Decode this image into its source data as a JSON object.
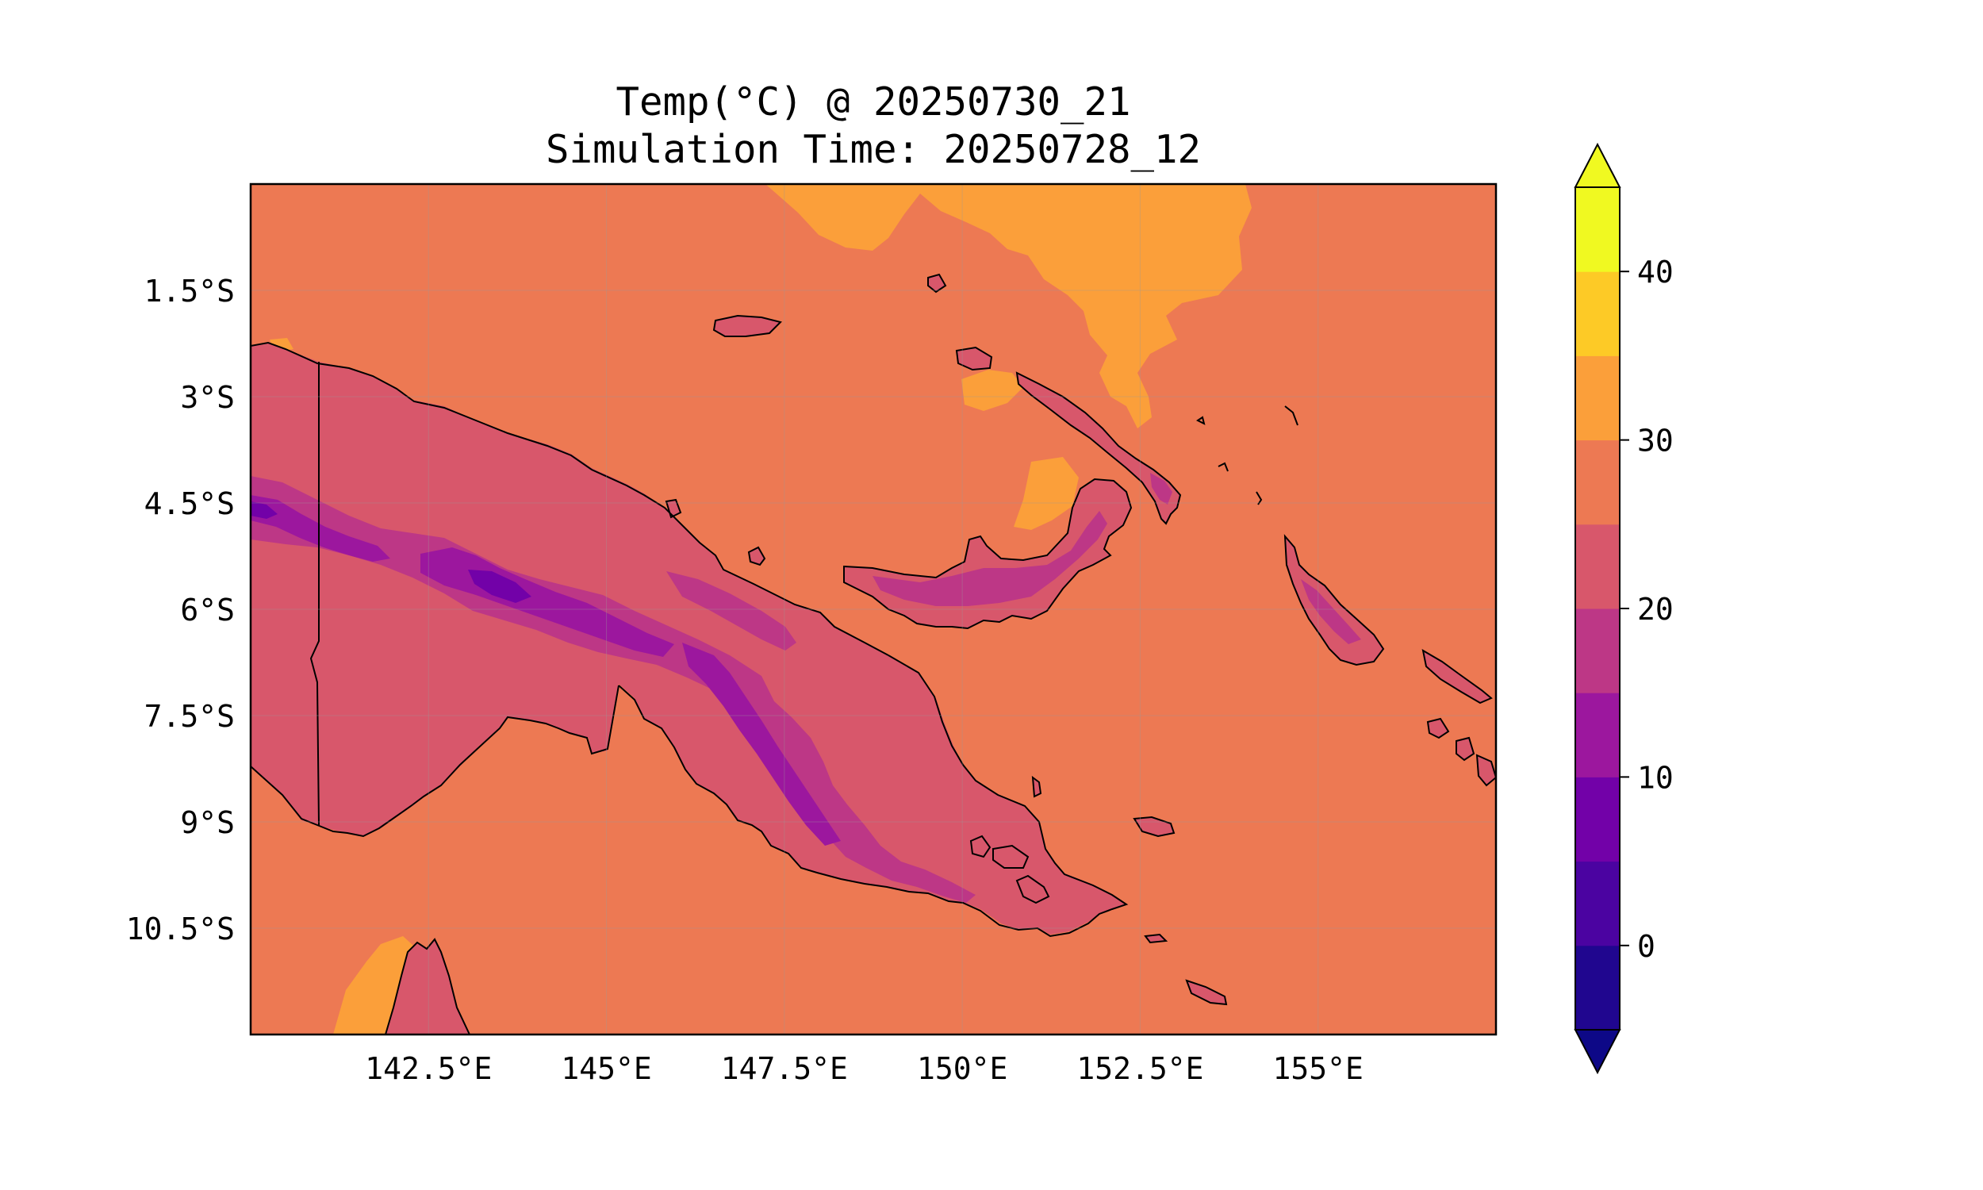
{
  "figure": {
    "title": "Temp(°C) @ 20250730_21",
    "subtitle": "Simulation Time: 20250728_12"
  },
  "map": {
    "latitude_ticks": [
      "1.5°S",
      "3°S",
      "4.5°S",
      "6°S",
      "7.5°S",
      "9°S",
      "10.5°S"
    ],
    "longitude_ticks": [
      "142.5°E",
      "145°E",
      "147.5°E",
      "150°E",
      "152.5°E",
      "155°E"
    ],
    "extent": {
      "lon": [
        140,
        157.5
      ],
      "lat": [
        -12.0,
        0.0
      ]
    },
    "gridlines": true,
    "coastlines": true
  },
  "colorbar": {
    "position": "right",
    "extend": "both",
    "levels": [
      -5,
      0,
      5,
      10,
      15,
      20,
      25,
      30,
      35,
      40,
      45
    ],
    "tick_labels": [
      "0",
      "10",
      "20",
      "30",
      "40"
    ],
    "colors": [
      "#0d0887",
      "#20068f",
      "#4b03a1",
      "#7201a8",
      "#9c179e",
      "#bd3786",
      "#d8576b",
      "#ed7953",
      "#fb9f3a",
      "#fdca26",
      "#f0f921"
    ],
    "under_color": "#0d0887",
    "over_color": "#f0f921"
  },
  "colors": {
    "ocean": "#ed7953",
    "land_lowland": "#d8576b",
    "highland": "#bd3786",
    "peaks": "#9c179e",
    "summit": "#7201a8",
    "warm_sea": "#fb9f3a",
    "coastline": "#000000"
  }
}
